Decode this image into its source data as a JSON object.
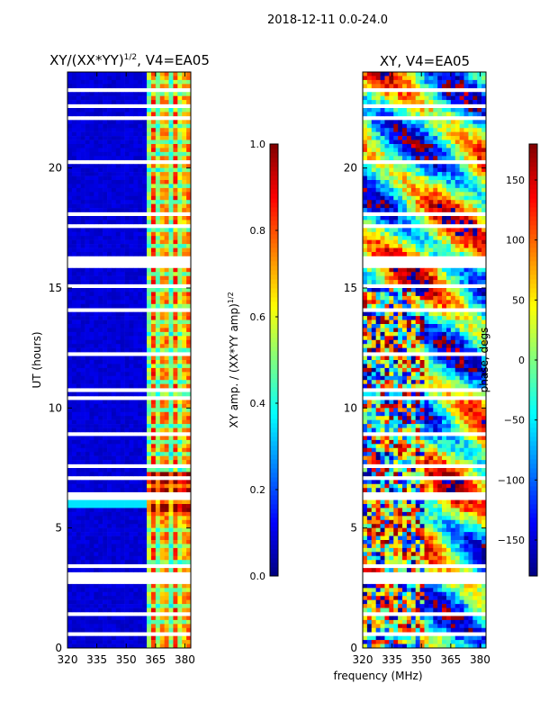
{
  "figure": {
    "suptitle": "2018-12-11 0.0-24.0",
    "xlabel_shared": "frequency (MHz)"
  },
  "chart_data": [
    {
      "type": "heatmap",
      "title_main": "XY/(XX*YY)",
      "title_sup": "1/2",
      "title_rest": ", V4=EA05",
      "ylabel": "UT (hours)",
      "xlim": [
        320,
        383
      ],
      "ylim": [
        0,
        24
      ],
      "xticks": [
        "320",
        "335",
        "350",
        "365",
        "380"
      ],
      "xtick_values": [
        320,
        335,
        350,
        365,
        380
      ],
      "yticks": [
        "0",
        "5",
        "10",
        "15",
        "20"
      ],
      "ytick_values": [
        0,
        5,
        10,
        15,
        20
      ],
      "colorbar": {
        "label_main": "XY amp. / (XX*YY amp)",
        "label_sup": "1/2",
        "range": [
          0.0,
          1.0
        ],
        "ticks": [
          "0.0",
          "0.2",
          "0.4",
          "0.6",
          "0.8",
          "1.0"
        ],
        "tick_values": [
          0.0,
          0.2,
          0.4,
          0.6,
          0.8,
          1.0
        ],
        "colormap": "jet"
      }
    },
    {
      "type": "heatmap",
      "title": "XY, V4=EA05",
      "xlim": [
        320,
        383
      ],
      "ylim": [
        0,
        24
      ],
      "xticks": [
        "320",
        "335",
        "350",
        "365",
        "380"
      ],
      "xtick_values": [
        320,
        335,
        350,
        365,
        380
      ],
      "yticks": [
        "0",
        "5",
        "10",
        "15",
        "20"
      ],
      "ytick_values": [
        0,
        5,
        10,
        15,
        20
      ],
      "colorbar": {
        "label": "phase, degs",
        "range": [
          -180,
          180
        ],
        "ticks": [
          "−150",
          "−100",
          "−50",
          "0",
          "50",
          "100",
          "150"
        ],
        "tick_values": [
          -150,
          -100,
          -50,
          0,
          50,
          100,
          150
        ],
        "colormap": "jet"
      }
    }
  ]
}
